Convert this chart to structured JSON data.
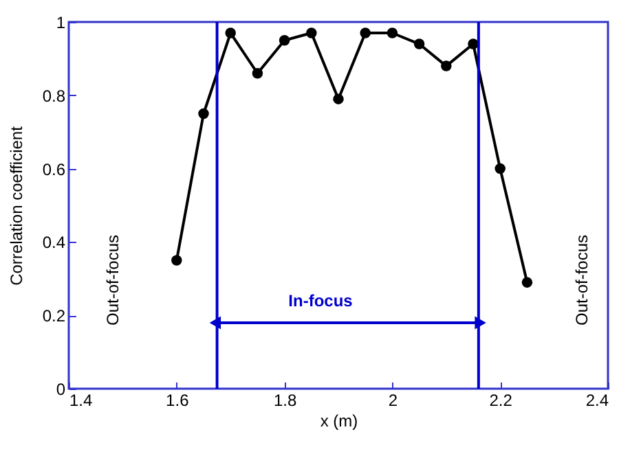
{
  "chart_data": {
    "type": "line",
    "xlabel": "x (m)",
    "ylabel": "Correlation coefficient",
    "x": [
      1.6,
      1.65,
      1.7,
      1.75,
      1.8,
      1.85,
      1.9,
      1.95,
      2.0,
      2.05,
      2.1,
      2.15,
      2.2,
      2.25
    ],
    "series": [
      {
        "color": "#000000",
        "values": [
          0.35,
          0.75,
          0.97,
          0.86,
          0.95,
          0.97,
          0.79,
          0.97,
          0.97,
          0.94,
          0.88,
          0.94,
          0.6,
          0.29
        ]
      }
    ],
    "xlim": [
      1.4,
      2.4
    ],
    "xticks": [
      1.4,
      1.6,
      1.8,
      2,
      2.2,
      2.4
    ],
    "ylim": [
      0,
      1
    ],
    "yticks": [
      0,
      0.2,
      0.4,
      0.6,
      0.8,
      1
    ],
    "marker": "circle",
    "line_style": "solid",
    "ref_lines": [
      {
        "axis": "x",
        "value": 1.675,
        "color": "#0000cc"
      },
      {
        "axis": "x",
        "value": 2.16,
        "color": "#0000cc"
      }
    ],
    "annotations": [
      "In-focus",
      "Out-of-focus",
      "Out-of-focus"
    ]
  }
}
